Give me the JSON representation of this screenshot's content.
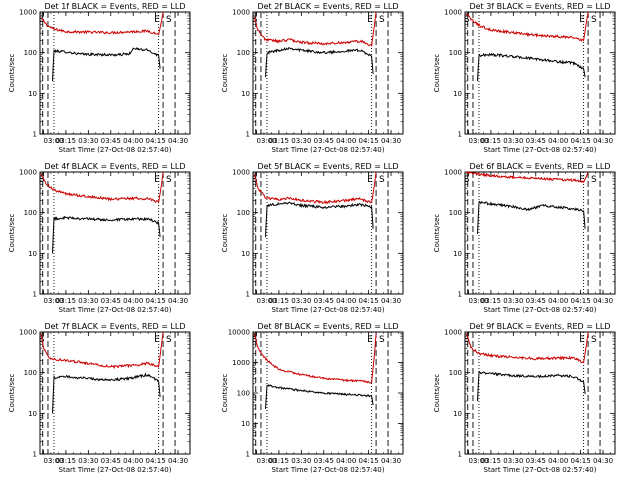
{
  "figure": {
    "xlabel": "Start Time (27-Oct-08 02:57:40)",
    "ylabel": "Counts/sec",
    "x_ticks": [
      "03:00",
      "03:15",
      "03:30",
      "03:45",
      "04:00",
      "04:15",
      "04:30"
    ],
    "marker_S": "S",
    "marker_E": "E"
  },
  "chart_data": [
    {
      "type": "line",
      "title": "Det 1f BLACK = Events, RED = LLD",
      "xlim": [
        "02:57:40",
        "04:38"
      ],
      "ylim": [
        1,
        1000
      ],
      "yscale": "log",
      "y_ticks": [
        "1",
        "10",
        "100",
        "1000"
      ],
      "series": [
        {
          "color": "#cc0000",
          "points": [
            [
              "02:58:30",
              700
            ],
            [
              "03:03",
              450
            ],
            [
              "03:07",
              380
            ],
            [
              "03:15",
              330
            ],
            [
              "03:30",
              320
            ],
            [
              "03:45",
              310
            ],
            [
              "04:00",
              330
            ],
            [
              "04:10",
              340
            ],
            [
              "04:17",
              280
            ],
            [
              "04:19",
              600
            ],
            [
              "04:20",
              1000
            ]
          ]
        },
        {
          "color": "#000000",
          "points": [
            [
              "03:06",
              20
            ],
            [
              "03:07",
              110
            ],
            [
              "03:15",
              105
            ],
            [
              "03:25",
              92
            ],
            [
              "03:35",
              90
            ],
            [
              "03:50",
              88
            ],
            [
              "03:58",
              95
            ],
            [
              "04:00",
              125
            ],
            [
              "04:10",
              115
            ],
            [
              "04:17",
              85
            ],
            [
              "04:18",
              40
            ]
          ]
        }
      ],
      "dashed_markers": [
        "02:59:30",
        "03:03",
        "04:20",
        "04:28"
      ],
      "dotted_markers": [
        "03:07",
        "04:17"
      ]
    },
    {
      "type": "line",
      "title": "Det 2f BLACK = Events, RED = LLD",
      "xlim": [
        "02:57:40",
        "04:38"
      ],
      "ylim": [
        1,
        1000
      ],
      "yscale": "log",
      "y_ticks": [
        "1",
        "10",
        "100",
        "1000"
      ],
      "series": [
        {
          "color": "#cc0000",
          "points": [
            [
              "02:58:30",
              800
            ],
            [
              "03:01",
              350
            ],
            [
              "03:06",
              210
            ],
            [
              "03:15",
              190
            ],
            [
              "03:22",
              210
            ],
            [
              "03:30",
              180
            ],
            [
              "03:45",
              165
            ],
            [
              "04:00",
              180
            ],
            [
              "04:10",
              190
            ],
            [
              "04:17",
              150
            ],
            [
              "04:19",
              500
            ],
            [
              "04:20",
              1000
            ]
          ]
        },
        {
          "color": "#000000",
          "points": [
            [
              "03:06",
              25
            ],
            [
              "03:07",
              100
            ],
            [
              "03:15",
              115
            ],
            [
              "03:22",
              130
            ],
            [
              "03:30",
              115
            ],
            [
              "03:45",
              100
            ],
            [
              "04:00",
              110
            ],
            [
              "04:10",
              115
            ],
            [
              "04:17",
              80
            ],
            [
              "04:18",
              30
            ]
          ]
        }
      ],
      "dashed_markers": [
        "02:59:30",
        "03:03",
        "04:20",
        "04:28"
      ],
      "dotted_markers": [
        "03:07",
        "04:17"
      ]
    },
    {
      "type": "line",
      "title": "Det 3f BLACK = Events, RED = LLD",
      "xlim": [
        "02:57:40",
        "04:38"
      ],
      "ylim": [
        1,
        1000
      ],
      "yscale": "log",
      "y_ticks": [
        "1",
        "10",
        "100",
        "1000"
      ],
      "series": [
        {
          "color": "#cc0000",
          "points": [
            [
              "02:58:30",
              900
            ],
            [
              "03:03",
              600
            ],
            [
              "03:07",
              470
            ],
            [
              "03:15",
              360
            ],
            [
              "03:30",
              310
            ],
            [
              "03:45",
              270
            ],
            [
              "04:00",
              250
            ],
            [
              "04:10",
              240
            ],
            [
              "04:17",
              200
            ],
            [
              "04:19",
              600
            ],
            [
              "04:20",
              1000
            ]
          ]
        },
        {
          "color": "#000000",
          "points": [
            [
              "03:06",
              20
            ],
            [
              "03:07",
              85
            ],
            [
              "03:15",
              90
            ],
            [
              "03:30",
              80
            ],
            [
              "03:45",
              70
            ],
            [
              "04:00",
              60
            ],
            [
              "04:10",
              55
            ],
            [
              "04:17",
              40
            ],
            [
              "04:18",
              25
            ]
          ]
        }
      ],
      "dashed_markers": [
        "02:59:30",
        "03:03",
        "04:20",
        "04:28"
      ],
      "dotted_markers": [
        "03:07",
        "04:17"
      ]
    },
    {
      "type": "line",
      "title": "Det 4f BLACK = Events, RED = LLD",
      "xlim": [
        "02:57:40",
        "04:38"
      ],
      "ylim": [
        1,
        1000
      ],
      "yscale": "log",
      "y_ticks": [
        "1",
        "10",
        "100",
        "1000"
      ],
      "series": [
        {
          "color": "#cc0000",
          "points": [
            [
              "02:58:30",
              900
            ],
            [
              "03:02",
              500
            ],
            [
              "03:07",
              360
            ],
            [
              "03:15",
              290
            ],
            [
              "03:30",
              250
            ],
            [
              "03:45",
              215
            ],
            [
              "04:00",
              225
            ],
            [
              "04:10",
              220
            ],
            [
              "04:17",
              180
            ],
            [
              "04:19",
              500
            ],
            [
              "04:20",
              1000
            ]
          ]
        },
        {
          "color": "#000000",
          "points": [
            [
              "03:06",
              10
            ],
            [
              "03:07",
              70
            ],
            [
              "03:15",
              75
            ],
            [
              "03:30",
              70
            ],
            [
              "03:45",
              65
            ],
            [
              "04:00",
              70
            ],
            [
              "04:10",
              70
            ],
            [
              "04:17",
              55
            ],
            [
              "04:18",
              25
            ]
          ]
        }
      ],
      "dashed_markers": [
        "02:59:30",
        "03:03",
        "04:20",
        "04:28"
      ],
      "dotted_markers": [
        "03:07",
        "04:17"
      ]
    },
    {
      "type": "line",
      "title": "Det 5f BLACK = Events, RED = LLD",
      "xlim": [
        "02:57:40",
        "04:38"
      ],
      "ylim": [
        1,
        1000
      ],
      "yscale": "log",
      "y_ticks": [
        "1",
        "10",
        "100",
        "1000"
      ],
      "series": [
        {
          "color": "#cc0000",
          "points": [
            [
              "02:58:30",
              900
            ],
            [
              "03:01",
              400
            ],
            [
              "03:06",
              230
            ],
            [
              "03:15",
              210
            ],
            [
              "03:22",
              230
            ],
            [
              "03:30",
              200
            ],
            [
              "03:45",
              180
            ],
            [
              "04:00",
              200
            ],
            [
              "04:08",
              220
            ],
            [
              "04:17",
              180
            ],
            [
              "04:19",
              500
            ],
            [
              "04:20",
              1000
            ]
          ]
        },
        {
          "color": "#000000",
          "points": [
            [
              "03:06",
              25
            ],
            [
              "03:07",
              150
            ],
            [
              "03:15",
              165
            ],
            [
              "03:22",
              175
            ],
            [
              "03:30",
              150
            ],
            [
              "03:45",
              135
            ],
            [
              "04:00",
              145
            ],
            [
              "04:08",
              160
            ],
            [
              "04:17",
              140
            ],
            [
              "04:18",
              40
            ]
          ]
        }
      ],
      "dashed_markers": [
        "02:59:30",
        "03:03",
        "04:20",
        "04:28"
      ],
      "dotted_markers": [
        "03:07",
        "04:17"
      ]
    },
    {
      "type": "line",
      "title": "Det 6f BLACK = Events, RED = LLD",
      "xlim": [
        "02:57:40",
        "04:38"
      ],
      "ylim": [
        1,
        1000
      ],
      "yscale": "log",
      "y_ticks": [
        "1",
        "10",
        "100",
        "1000"
      ],
      "series": [
        {
          "color": "#cc0000",
          "points": [
            [
              "02:58:30",
              1000
            ],
            [
              "03:05",
              900
            ],
            [
              "03:15",
              820
            ],
            [
              "03:30",
              750
            ],
            [
              "03:45",
              700
            ],
            [
              "04:00",
              650
            ],
            [
              "04:10",
              630
            ],
            [
              "04:17",
              560
            ],
            [
              "04:19",
              800
            ],
            [
              "04:20",
              1000
            ]
          ]
        },
        {
          "color": "#000000",
          "points": [
            [
              "03:06",
              30
            ],
            [
              "03:07",
              180
            ],
            [
              "03:15",
              165
            ],
            [
              "03:30",
              140
            ],
            [
              "03:40",
              120
            ],
            [
              "03:50",
              150
            ],
            [
              "04:00",
              135
            ],
            [
              "04:10",
              125
            ],
            [
              "04:17",
              110
            ],
            [
              "04:18",
              40
            ]
          ]
        }
      ],
      "dashed_markers": [
        "02:59:30",
        "03:03",
        "04:20",
        "04:28"
      ],
      "dotted_markers": [
        "03:07",
        "04:17"
      ]
    },
    {
      "type": "line",
      "title": "Det 7f BLACK = Events, RED = LLD",
      "xlim": [
        "02:57:40",
        "04:38"
      ],
      "ylim": [
        1,
        1000
      ],
      "yscale": "log",
      "y_ticks": [
        "1",
        "10",
        "100",
        "1000"
      ],
      "series": [
        {
          "color": "#cc0000",
          "points": [
            [
              "02:58:30",
              900
            ],
            [
              "03:00",
              400
            ],
            [
              "03:04",
              220
            ],
            [
              "03:15",
              200
            ],
            [
              "03:30",
              170
            ],
            [
              "03:45",
              140
            ],
            [
              "04:00",
              150
            ],
            [
              "04:10",
              170
            ],
            [
              "04:17",
              140
            ],
            [
              "04:19",
              500
            ],
            [
              "04:20",
              1000
            ]
          ]
        },
        {
          "color": "#000000",
          "points": [
            [
              "03:06",
              10
            ],
            [
              "03:07",
              75
            ],
            [
              "03:15",
              80
            ],
            [
              "03:30",
              72
            ],
            [
              "03:45",
              65
            ],
            [
              "04:00",
              75
            ],
            [
              "04:10",
              90
            ],
            [
              "04:17",
              60
            ],
            [
              "04:18",
              25
            ]
          ]
        }
      ],
      "dashed_markers": [
        "02:59:30",
        "03:03",
        "04:20",
        "04:28"
      ],
      "dotted_markers": [
        "03:07",
        "04:17"
      ]
    },
    {
      "type": "line",
      "title": "Det 8f BLACK = Events, RED = LLD",
      "xlim": [
        "02:57:40",
        "04:38"
      ],
      "ylim": [
        1,
        10000
      ],
      "yscale": "log",
      "y_ticks": [
        "1",
        "10",
        "100",
        "1000",
        "10000"
      ],
      "series": [
        {
          "color": "#cc0000",
          "points": [
            [
              "02:58:30",
              9000
            ],
            [
              "03:01",
              3000
            ],
            [
              "03:05",
              1500
            ],
            [
              "03:10",
              900
            ],
            [
              "03:15",
              600
            ],
            [
              "03:30",
              400
            ],
            [
              "03:45",
              300
            ],
            [
              "04:00",
              260
            ],
            [
              "04:10",
              250
            ],
            [
              "04:17",
              220
            ],
            [
              "04:19",
              2000
            ],
            [
              "04:20",
              9000
            ]
          ]
        },
        {
          "color": "#000000",
          "points": [
            [
              "03:06",
              30
            ],
            [
              "03:07",
              180
            ],
            [
              "03:15",
              150
            ],
            [
              "03:30",
              120
            ],
            [
              "03:45",
              100
            ],
            [
              "04:00",
              90
            ],
            [
              "04:10",
              85
            ],
            [
              "04:17",
              80
            ],
            [
              "04:18",
              40
            ]
          ]
        }
      ],
      "dashed_markers": [
        "02:59:30",
        "03:03",
        "04:20",
        "04:28"
      ],
      "dotted_markers": [
        "03:07",
        "04:17"
      ]
    },
    {
      "type": "line",
      "title": "Det 9f BLACK = Events, RED = LLD",
      "xlim": [
        "02:57:40",
        "04:38"
      ],
      "ylim": [
        1,
        1000
      ],
      "yscale": "log",
      "y_ticks": [
        "1",
        "10",
        "100",
        "1000"
      ],
      "series": [
        {
          "color": "#cc0000",
          "points": [
            [
              "02:58:30",
              900
            ],
            [
              "03:02",
              400
            ],
            [
              "03:07",
              300
            ],
            [
              "03:15",
              260
            ],
            [
              "03:30",
              240
            ],
            [
              "03:45",
              220
            ],
            [
              "04:00",
              230
            ],
            [
              "04:10",
              230
            ],
            [
              "04:17",
              180
            ],
            [
              "04:19",
              500
            ],
            [
              "04:20",
              1000
            ]
          ]
        },
        {
          "color": "#000000",
          "points": [
            [
              "03:06",
              20
            ],
            [
              "03:07",
              100
            ],
            [
              "03:15",
              95
            ],
            [
              "03:30",
              85
            ],
            [
              "03:45",
              80
            ],
            [
              "04:00",
              85
            ],
            [
              "04:10",
              80
            ],
            [
              "04:17",
              60
            ],
            [
              "04:18",
              30
            ]
          ]
        }
      ],
      "dashed_markers": [
        "02:59:30",
        "03:03",
        "04:20",
        "04:28"
      ],
      "dotted_markers": [
        "03:07",
        "04:17"
      ]
    }
  ]
}
